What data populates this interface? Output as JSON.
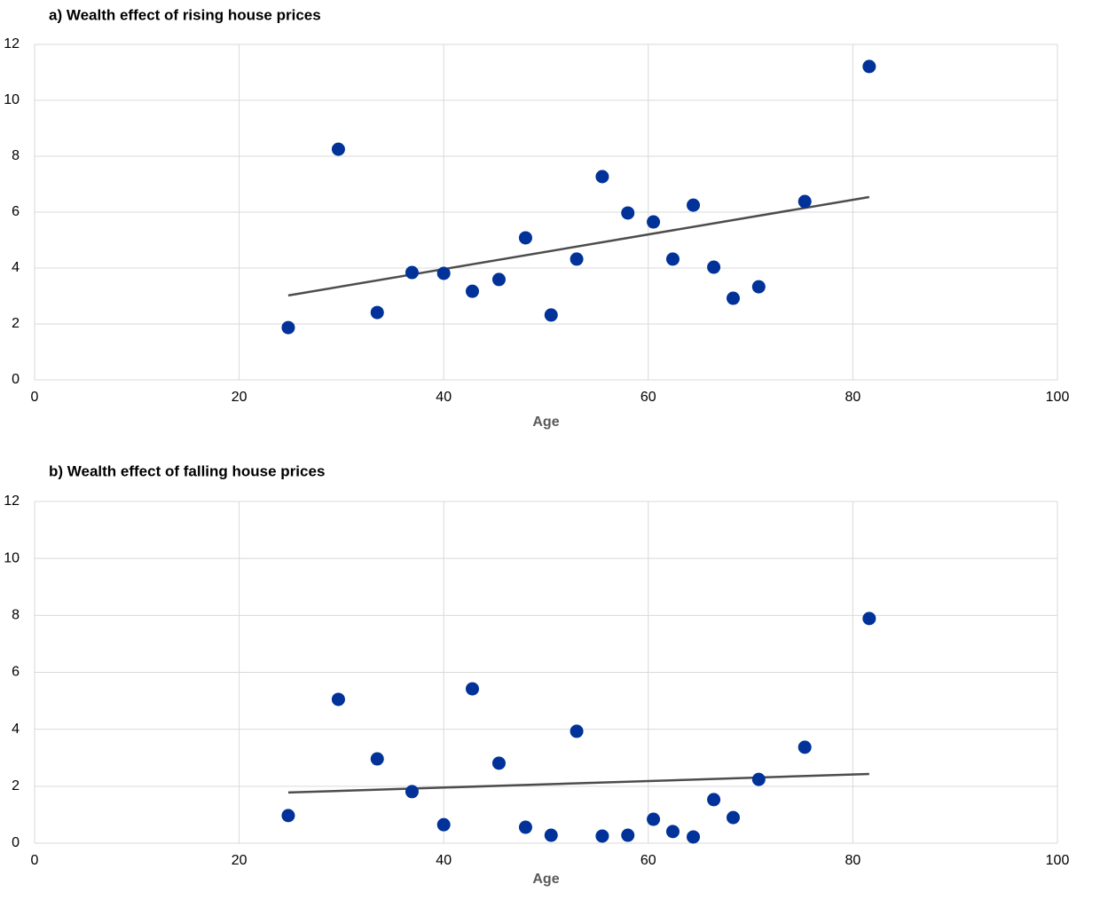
{
  "chart_data": [
    {
      "type": "scatter",
      "title": "a) Wealth effect of rising house prices",
      "x_label": "Age",
      "x": [
        24.8,
        29.7,
        33.5,
        36.9,
        40.0,
        42.8,
        45.4,
        48.0,
        50.5,
        53.0,
        55.5,
        58.0,
        60.5,
        62.4,
        64.4,
        66.4,
        68.3,
        70.8,
        75.3,
        81.6
      ],
      "values": [
        1.87,
        8.25,
        2.41,
        3.84,
        3.81,
        3.17,
        3.59,
        5.08,
        2.32,
        4.32,
        7.27,
        5.97,
        5.65,
        4.32,
        6.25,
        4.03,
        2.92,
        3.33,
        6.38,
        11.21
      ],
      "color": "#003299",
      "trend": {
        "x": [
          24.8,
          81.6
        ],
        "values": [
          3.02,
          6.54
        ],
        "color": "#4d4d4d"
      },
      "xlim": [
        0,
        100
      ],
      "xticks": [
        0,
        20,
        40,
        60,
        80,
        100
      ],
      "ylim": [
        0,
        12
      ],
      "yticks": [
        0,
        2,
        4,
        6,
        8,
        10,
        12
      ],
      "grid": true
    },
    {
      "type": "scatter",
      "title": "b) Wealth effect of falling house prices",
      "x_label": "Age",
      "x": [
        24.8,
        29.7,
        33.5,
        36.9,
        40.0,
        42.8,
        45.4,
        48.0,
        50.5,
        53.0,
        55.5,
        58.0,
        60.5,
        62.4,
        64.4,
        66.4,
        68.3,
        70.8,
        75.3,
        81.6
      ],
      "values": [
        0.97,
        5.05,
        2.96,
        1.81,
        0.65,
        5.42,
        2.81,
        0.56,
        0.28,
        3.93,
        0.25,
        0.28,
        0.84,
        0.41,
        0.22,
        1.53,
        0.9,
        2.24,
        3.37,
        7.89
      ],
      "color": "#003299",
      "trend": {
        "x": [
          24.8,
          81.6
        ],
        "values": [
          1.78,
          2.43
        ],
        "color": "#4d4d4d"
      },
      "xlim": [
        0,
        100
      ],
      "xticks": [
        0,
        20,
        40,
        60,
        80,
        100
      ],
      "ylim": [
        0,
        12
      ],
      "yticks": [
        0,
        2,
        4,
        6,
        8,
        10,
        12
      ],
      "grid": true
    }
  ]
}
